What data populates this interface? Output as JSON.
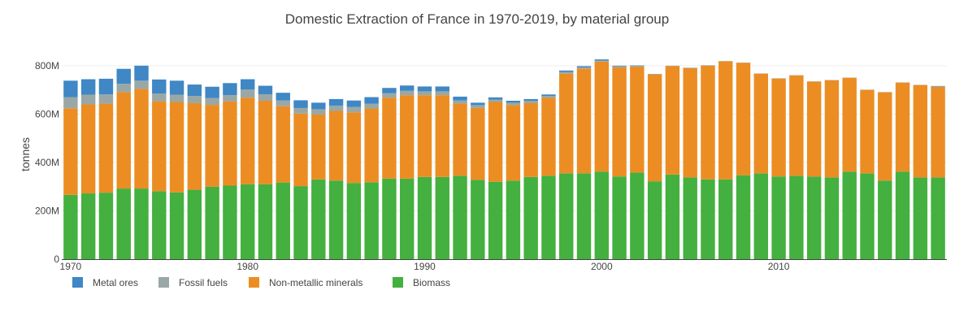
{
  "chart_data": {
    "type": "bar",
    "stacked": true,
    "title": "Domestic Extraction of France in 1970-2019, by material group",
    "xlabel": "",
    "ylabel": "tonnes",
    "ylim": [
      0,
      870000000
    ],
    "yticks": [
      0,
      200000000,
      400000000,
      600000000,
      800000000
    ],
    "ytick_labels": [
      "0",
      "200M",
      "400M",
      "600M",
      "800M"
    ],
    "xticks": [
      1970,
      1980,
      1990,
      2000,
      2010
    ],
    "xtick_labels": [
      "1970",
      "1980",
      "1990",
      "2000",
      "2010"
    ],
    "grid": true,
    "legend_position": "bottom-left",
    "x": [
      1970,
      1971,
      1972,
      1973,
      1974,
      1975,
      1976,
      1977,
      1978,
      1979,
      1980,
      1981,
      1982,
      1983,
      1984,
      1985,
      1986,
      1987,
      1988,
      1989,
      1990,
      1991,
      1992,
      1993,
      1994,
      1995,
      1996,
      1997,
      1998,
      1999,
      2000,
      2001,
      2002,
      2003,
      2004,
      2005,
      2006,
      2007,
      2008,
      2009,
      2010,
      2011,
      2012,
      2013,
      2014,
      2015,
      2016,
      2017,
      2018,
      2019
    ],
    "series": [
      {
        "name": "Biomass",
        "color": "#44b03f",
        "values": [
          266,
          272,
          275,
          292,
          292,
          281,
          276,
          287,
          300,
          304,
          310,
          310,
          317,
          302,
          330,
          325,
          315,
          318,
          333,
          333,
          340,
          340,
          345,
          328,
          320,
          325,
          340,
          345,
          355,
          355,
          362,
          342,
          358,
          322,
          350,
          338,
          330,
          330,
          347,
          355,
          342,
          345,
          342,
          338,
          362,
          355,
          325,
          362,
          338,
          338
        ]
      },
      {
        "name": "Non-metallic minerals",
        "color": "#ec8d23",
        "values": [
          358,
          368,
          368,
          398,
          412,
          372,
          374,
          358,
          338,
          348,
          358,
          345,
          315,
          300,
          268,
          288,
          292,
          305,
          335,
          345,
          338,
          338,
          298,
          297,
          330,
          312,
          305,
          322,
          412,
          433,
          455,
          452,
          438,
          442,
          448,
          452,
          470,
          488,
          465,
          412,
          405,
          415,
          392,
          402,
          388,
          345,
          365,
          368,
          382,
          375
        ]
      },
      {
        "name": "Fossil fuels",
        "color": "#99a8a6",
        "values": [
          46,
          40,
          38,
          35,
          34,
          32,
          30,
          30,
          28,
          26,
          34,
          27,
          24,
          23,
          22,
          22,
          22,
          20,
          18,
          18,
          16,
          16,
          13,
          12,
          10,
          10,
          10,
          8,
          7,
          5,
          4,
          3,
          3,
          2,
          2,
          2,
          2,
          1,
          1,
          1,
          1,
          1,
          1,
          1,
          1,
          1,
          1,
          1,
          1,
          1
        ]
      },
      {
        "name": "Metal ores",
        "color": "#3f87c5",
        "values": [
          68,
          64,
          65,
          62,
          62,
          58,
          58,
          47,
          47,
          50,
          42,
          35,
          32,
          32,
          27,
          27,
          27,
          27,
          22,
          22,
          20,
          20,
          16,
          10,
          9,
          8,
          7,
          6,
          6,
          5,
          5,
          3,
          2,
          0,
          0,
          0,
          0,
          0,
          0,
          0,
          0,
          0,
          0,
          0,
          0,
          0,
          0,
          0,
          0,
          2
        ]
      }
    ],
    "legend_order": [
      "Metal ores",
      "Fossil fuels",
      "Non-metallic minerals",
      "Biomass"
    ],
    "value_unit": "million tonnes"
  }
}
